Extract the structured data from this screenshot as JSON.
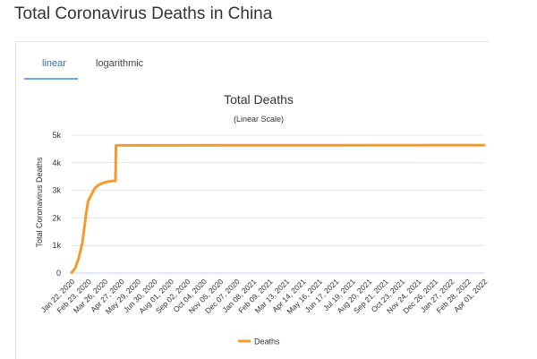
{
  "page": {
    "title": "Total Coronavirus Deaths in China"
  },
  "tabs": [
    {
      "label": "linear",
      "active": true
    },
    {
      "label": "logarithmic",
      "active": false
    }
  ],
  "colors": {
    "series": "#f39c2c",
    "active_tab_underline": "#6aa8e0",
    "grid": "#e6e6e6"
  },
  "chart_data": {
    "type": "line",
    "title": "Total Deaths",
    "subtitle": "(Linear Scale)",
    "ylabel": "Total Coronavirus Deaths",
    "xlabel": "",
    "ylim": [
      0,
      5000
    ],
    "yticks": [
      0,
      1000,
      2000,
      3000,
      4000,
      5000
    ],
    "ytick_labels": [
      "0",
      "1k",
      "2k",
      "3k",
      "4k",
      "5k"
    ],
    "xtick_labels": [
      "Jan 22, 2020",
      "Feb 23, 2020",
      "Mar 26, 2020",
      "Apr 27, 2020",
      "May 29, 2020",
      "Jun 30, 2020",
      "Aug 01, 2020",
      "Sep 02, 2020",
      "Oct 04, 2020",
      "Nov 05, 2020",
      "Dec 07, 2020",
      "Jan 08, 2021",
      "Feb 09, 2021",
      "Mar 13, 2021",
      "Apr 14, 2021",
      "May 16, 2021",
      "Jun 17, 2021",
      "Jul 19, 2021",
      "Aug 20, 2021",
      "Sep 21, 2021",
      "Oct 23, 2021",
      "Nov 24, 2021",
      "Dec 26, 2021",
      "Jan 27, 2022",
      "Feb 28, 2022",
      "Apr 01, 2022"
    ],
    "grid": true,
    "legend_position": "bottom",
    "series": [
      {
        "name": "Deaths",
        "x": [
          "Jan 22, 2020",
          "Jan 29, 2020",
          "Feb 05, 2020",
          "Feb 12, 2020",
          "Feb 19, 2020",
          "Feb 23, 2020",
          "Mar 01, 2020",
          "Mar 08, 2020",
          "Mar 15, 2020",
          "Mar 26, 2020",
          "Apr 05, 2020",
          "Apr 16, 2020",
          "Apr 17, 2020",
          "Apr 27, 2020",
          "Apr 01, 2022"
        ],
        "values": [
          17,
          170,
          560,
          1110,
          2120,
          2600,
          2870,
          3100,
          3200,
          3290,
          3330,
          3340,
          4630,
          4630,
          4640
        ]
      }
    ]
  }
}
